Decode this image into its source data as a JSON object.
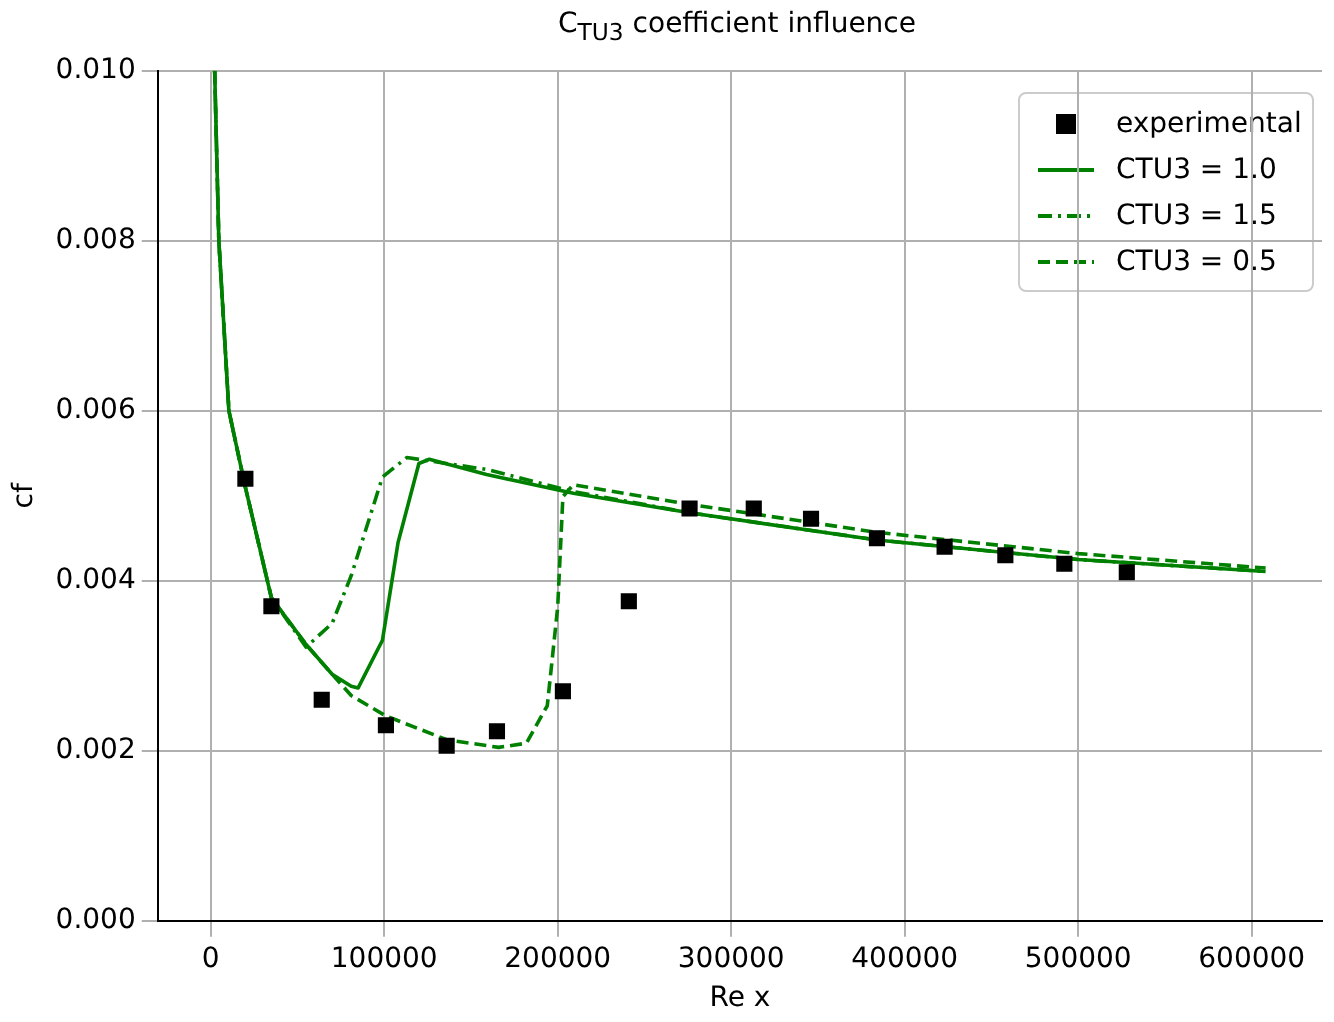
{
  "chart_data": {
    "type": "line",
    "title": "C$_{TU3}$ coefficient influence",
    "xlabel": "Re x",
    "ylabel": "cf",
    "xlim": [
      -30500,
      640500
    ],
    "xticks": [
      0,
      100000,
      200000,
      300000,
      400000,
      500000,
      600000
    ],
    "ylim": [
      0,
      0.01
    ],
    "yticks": [
      {
        "value": 0,
        "label": "0.000"
      },
      0.002,
      0.004,
      0.006,
      0.008,
      {
        "value": 0.01,
        "label": "0.010"
      }
    ],
    "grid": true,
    "legend": "top right",
    "series": [
      {
        "name": "experimental",
        "type": "scatter",
        "marker": "square",
        "color": "#000000",
        "x": [
          20000,
          35000,
          64000,
          101000,
          136000,
          165000,
          203000,
          241000,
          276000,
          313000,
          346000,
          384000,
          423000,
          458000,
          492000,
          528000
        ],
        "values": [
          0.0052,
          0.0037,
          0.0026,
          0.0023,
          0.00206,
          0.00223,
          0.0027,
          0.00376,
          0.00485,
          0.00485,
          0.00473,
          0.0045,
          0.0044,
          0.0043,
          0.0042,
          0.0041
        ]
      },
      {
        "name": "CTU3 = 1.0",
        "type": "line",
        "line_style": "solid",
        "marker": "none",
        "color": "#008000",
        "x": [
          2300,
          4700,
          10500,
          20000,
          35000,
          55000,
          70000,
          81000,
          85000,
          99000,
          108000,
          120000,
          126000,
          159000,
          209000,
          276000,
          384000,
          500000,
          608000
        ],
        "values": [
          0.01,
          0.008,
          0.006,
          0.0051,
          0.0038,
          0.00325,
          0.0029,
          0.00276,
          0.00274,
          0.0033,
          0.00445,
          0.00538,
          0.00543,
          0.00525,
          0.00503,
          0.0048,
          0.00448,
          0.00425,
          0.00411
        ]
      },
      {
        "name": "CTU3 = 1.5",
        "type": "line",
        "line_style": "dashdot",
        "marker": "none",
        "color": "#008000",
        "x": [
          2300,
          4700,
          10500,
          20000,
          35000,
          55000,
          70000,
          81000,
          99000,
          113000,
          159000,
          209000,
          276000,
          384000,
          500000,
          608000
        ],
        "values": [
          0.01,
          0.008,
          0.006,
          0.0051,
          0.0038,
          0.00322,
          0.0035,
          0.00406,
          0.00522,
          0.00545,
          0.00531,
          0.00505,
          0.0048,
          0.00448,
          0.00425,
          0.00411
        ]
      },
      {
        "name": "CTU3 = 0.5",
        "type": "line",
        "line_style": "dashed",
        "marker": "none",
        "color": "#008000",
        "x": [
          2300,
          4700,
          10500,
          20000,
          35000,
          55000,
          70000,
          81000,
          101000,
          136000,
          166000,
          182000,
          194000,
          200000,
          203000,
          209000,
          276000,
          384000,
          500000,
          608000
        ],
        "values": [
          0.01,
          0.008,
          0.006,
          0.0051,
          0.0038,
          0.00325,
          0.0029,
          0.00265,
          0.00241,
          0.00213,
          0.00204,
          0.00209,
          0.00253,
          0.00369,
          0.00499,
          0.00513,
          0.0049,
          0.00457,
          0.00432,
          0.00415
        ]
      }
    ]
  }
}
